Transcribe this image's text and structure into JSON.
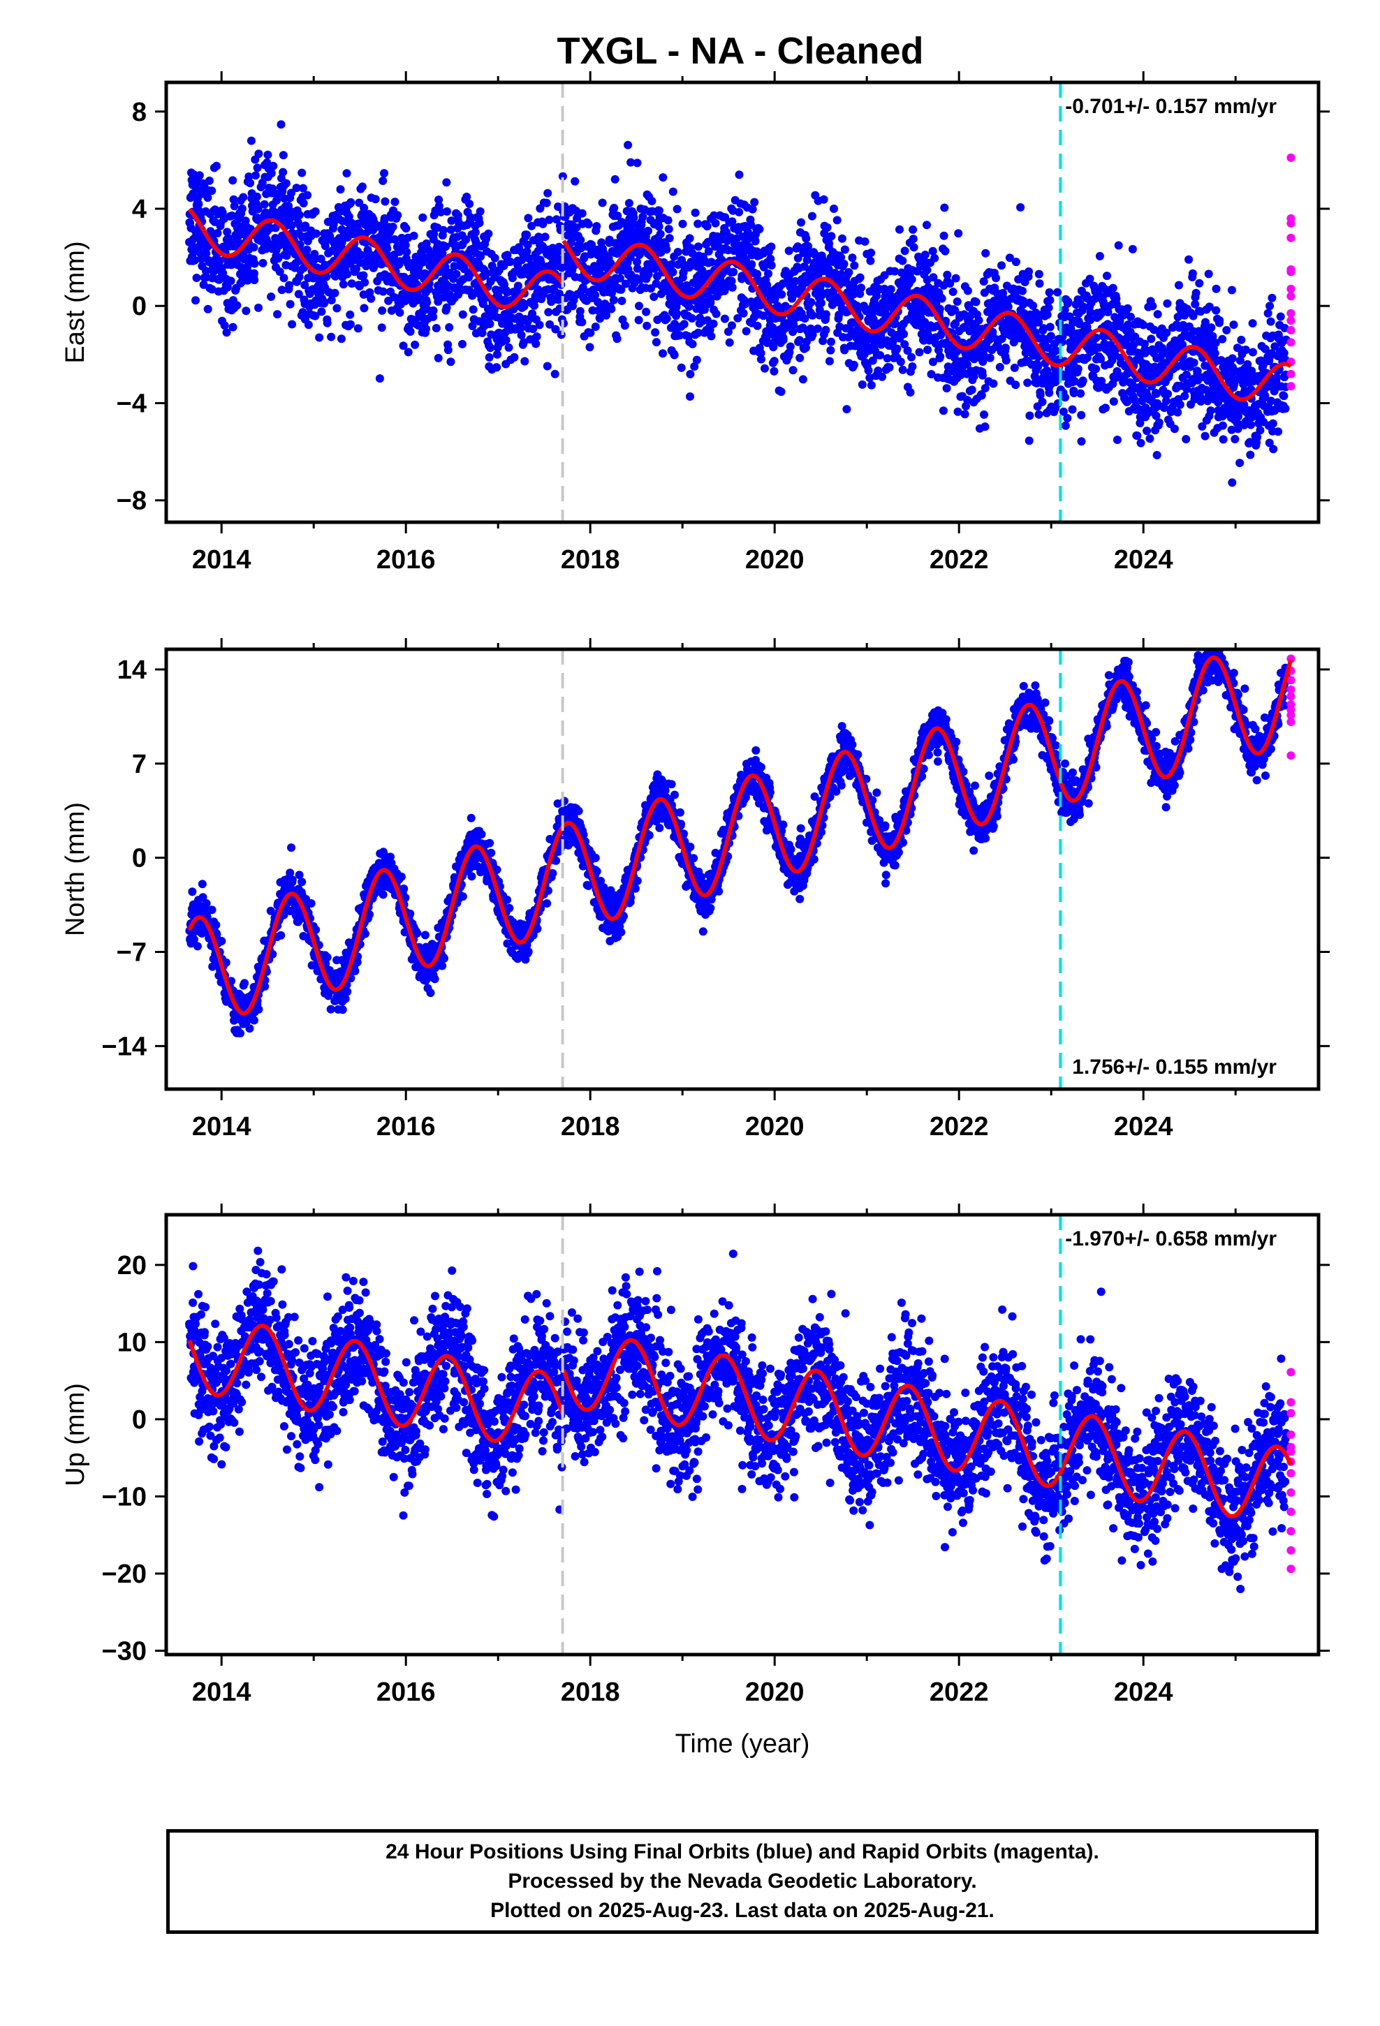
{
  "title": "TXGL  - NA - Cleaned",
  "chart_data": [
    {
      "type": "scatter",
      "name": "east",
      "ylabel": "East (mm)",
      "xlabel": "",
      "xlim": [
        2013.4,
        2025.9
      ],
      "ylim": [
        -8.9,
        9.2
      ],
      "yticks": [
        -8,
        -4,
        0,
        4,
        8
      ],
      "xticks": [
        2014,
        2016,
        2018,
        2020,
        2022,
        2024
      ],
      "rate_label": "-0.701+/- 0.157 mm/yr",
      "rate_label_position": "top-right",
      "rate": -0.701,
      "trend_intercept": 3.0,
      "seasonal_amplitude": 0.9,
      "noise": 1.3,
      "offsets": [
        {
          "t": 2017.7,
          "delta": 1.8
        }
      ],
      "seasonal_phase": 0.3,
      "vlines": [
        {
          "x": 2017.7,
          "color": "#c8c8c8"
        },
        {
          "x": 2023.1,
          "color": "#00e0e0"
        }
      ],
      "rapid_last_values": [
        6.1,
        3.6,
        3.4,
        2.8,
        1.5,
        1.4,
        0.7,
        0.4,
        -0.3,
        -0.6,
        -1.0,
        -1.5,
        -2.3,
        -2.8,
        -3.3
      ]
    },
    {
      "type": "scatter",
      "name": "north",
      "ylabel": "North (mm)",
      "xlabel": "",
      "xlim": [
        2013.4,
        2025.9
      ],
      "ylim": [
        -17.2,
        15.5
      ],
      "yticks": [
        -14,
        -7,
        0,
        7,
        14
      ],
      "xticks": [
        2014,
        2016,
        2018,
        2020,
        2022,
        2024
      ],
      "rate_label": "1.756+/- 0.155 mm/yr",
      "rate_label_position": "bottom-right",
      "rate": 1.756,
      "trend_intercept": -8.0,
      "seasonal_amplitude": 4.0,
      "noise": 0.8,
      "offsets": [],
      "seasonal_phase": 0.5,
      "vlines": [
        {
          "x": 2017.7,
          "color": "#c8c8c8"
        },
        {
          "x": 2023.1,
          "color": "#00e0e0"
        }
      ],
      "rapid_last_values": [
        14.8,
        13.9,
        13.2,
        12.5,
        12.0,
        11.4,
        11.0,
        10.6,
        10.1,
        7.6
      ]
    },
    {
      "type": "scatter",
      "name": "up",
      "ylabel": "Up (mm)",
      "xlabel": "Time (year)",
      "xlim": [
        2013.4,
        2025.9
      ],
      "ylim": [
        -30.5,
        26.5
      ],
      "yticks": [
        -30,
        -20,
        -10,
        0,
        10,
        20
      ],
      "xticks": [
        2014,
        2016,
        2018,
        2020,
        2022,
        2024
      ],
      "rate_label": "-1.970+/- 0.658 mm/yr",
      "rate_label_position": "top-right",
      "rate": -1.97,
      "trend_intercept": 8.0,
      "seasonal_amplitude": 5.0,
      "noise": 4.0,
      "offsets": [
        {
          "t": 2017.7,
          "delta": 6.0
        }
      ],
      "seasonal_phase": 0.2,
      "vlines": [
        {
          "x": 2017.7,
          "color": "#c8c8c8"
        },
        {
          "x": 2023.1,
          "color": "#00e0e0"
        }
      ],
      "rapid_last_values": [
        6.1,
        2.2,
        0.8,
        -2.0,
        -3.6,
        -4.2,
        -5.5,
        -7.0,
        -9.5,
        -12.0,
        -14.5,
        -17.0,
        -19.4
      ]
    }
  ],
  "series_colors": {
    "final_orbits": "#0000ff",
    "rapid_orbits": "#ff00ff",
    "model_fit": "#ff0000"
  },
  "footer": {
    "line1": "24 Hour Positions Using Final Orbits (blue) and Rapid Orbits (magenta).",
    "line2": "Processed by the Nevada Geodetic Laboratory.",
    "line3": "Plotted on 2025-Aug-23. Last data on 2025-Aug-21."
  }
}
